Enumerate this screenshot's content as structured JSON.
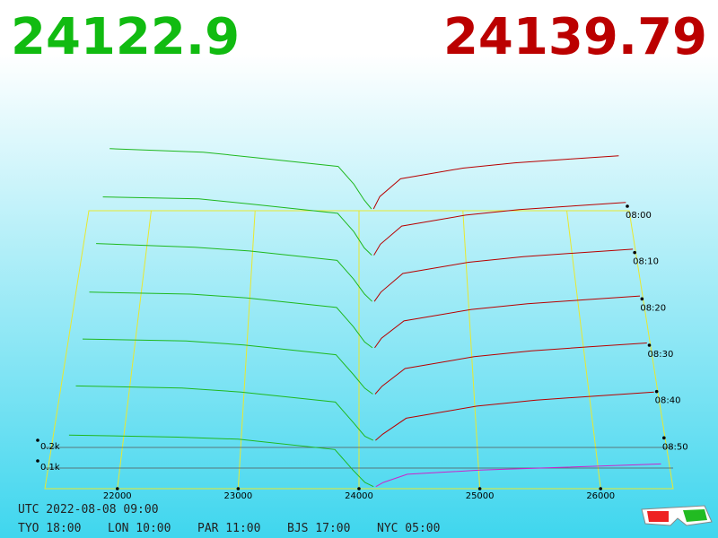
{
  "chart_data": {
    "type": "depth3d",
    "best_bid": 24122.9,
    "best_ask": 24139.79,
    "bid_color": "#1fb81f",
    "ask_color": "#b80000",
    "current_ask_color": "#cc22cc",
    "price_color": "#11bb11",
    "ask_price_color": "#bb0000",
    "xlim": [
      21400,
      26600
    ],
    "xticks": [
      22000,
      23000,
      24000,
      25000,
      26000
    ],
    "ylim": [
      0,
      2000
    ],
    "yticks": [
      {
        "value": 100,
        "label": "0.1k"
      },
      {
        "value": 200,
        "label": "0.2k"
      }
    ],
    "zlim": [
      480,
      540
    ],
    "zticks": [
      {
        "value": 480,
        "label": "08:00"
      },
      {
        "value": 490,
        "label": "08:10"
      },
      {
        "value": 500,
        "label": "08:20"
      },
      {
        "value": 510,
        "label": "08:30"
      },
      {
        "value": 520,
        "label": "08:40"
      },
      {
        "value": 530,
        "label": "08:50"
      }
    ],
    "bid_prices": [
      21600,
      22500,
      23000,
      23800,
      23950,
      24050,
      24120
    ],
    "ask_prices": [
      24140,
      24200,
      24400,
      25000,
      25500,
      26000,
      26500
    ],
    "slices": [
      {
        "time": 480,
        "bid_volumes": [
          350,
          330,
          300,
          250,
          150,
          60,
          10
        ],
        "ask_volumes": [
          10,
          80,
          180,
          240,
          270,
          290,
          310
        ]
      },
      {
        "time": 490,
        "bid_volumes": [
          330,
          320,
          290,
          240,
          140,
          50,
          10
        ],
        "ask_volumes": [
          10,
          70,
          170,
          230,
          260,
          280,
          300
        ]
      },
      {
        "time": 500,
        "bid_volumes": [
          320,
          300,
          280,
          230,
          130,
          50,
          10
        ],
        "ask_volumes": [
          10,
          60,
          160,
          220,
          250,
          270,
          290
        ]
      },
      {
        "time": 510,
        "bid_volumes": [
          300,
          290,
          270,
          220,
          120,
          40,
          10
        ],
        "ask_volumes": [
          10,
          60,
          150,
          210,
          240,
          260,
          280
        ]
      },
      {
        "time": 520,
        "bid_volumes": [
          290,
          280,
          260,
          210,
          110,
          40,
          10
        ],
        "ask_volumes": [
          10,
          50,
          140,
          200,
          230,
          250,
          270
        ]
      },
      {
        "time": 530,
        "bid_volumes": [
          280,
          270,
          250,
          200,
          100,
          30,
          10
        ],
        "ask_volumes": [
          10,
          40,
          120,
          180,
          210,
          230,
          250
        ]
      },
      {
        "time": 540,
        "bid_volumes": [
          260,
          250,
          240,
          190,
          90,
          30,
          10
        ],
        "ask_volumes": [
          10,
          30,
          70,
          90,
          100,
          110,
          120
        ]
      }
    ],
    "timestamp": "UTC 2022-08-08 09:00",
    "clocks": [
      "TYO 18:00",
      "LON 10:00",
      "PAR 11:00",
      "BJS 17:00",
      "NYC 05:00"
    ]
  }
}
